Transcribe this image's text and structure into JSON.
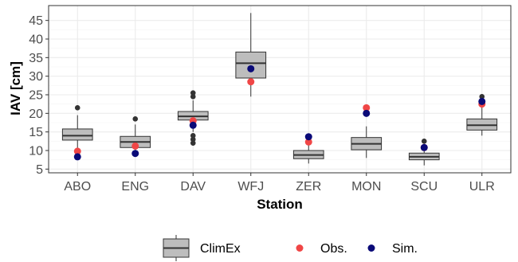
{
  "chart_data": {
    "type": "box",
    "categories": [
      "ABO",
      "ENG",
      "DAV",
      "WFJ",
      "ZER",
      "MON",
      "SCU",
      "ULR"
    ],
    "xlabel": "Station",
    "ylabel": "IAV [cm]",
    "ylim": [
      4,
      49
    ],
    "yticks": [
      5,
      10,
      15,
      20,
      25,
      30,
      35,
      40,
      45
    ],
    "grid": true,
    "legend_position": "bottom",
    "box_series": {
      "name": "ClimEx",
      "boxes": [
        {
          "whisker_low": 10.5,
          "q1": 12.8,
          "median": 14.0,
          "q3": 15.8,
          "whisker_high": 19.5,
          "outliers": [
            21.5
          ]
        },
        {
          "whisker_low": 8.5,
          "q1": 10.8,
          "median": 12.3,
          "q3": 13.8,
          "whisker_high": 17.0,
          "outliers": [
            18.5
          ]
        },
        {
          "whisker_low": 15.0,
          "q1": 18.2,
          "median": 19.2,
          "q3": 20.5,
          "whisker_high": 23.5,
          "outliers": [
            12.0,
            13.0,
            14.0,
            24.5,
            25.5
          ]
        },
        {
          "whisker_low": 24.5,
          "q1": 29.5,
          "median": 33.5,
          "q3": 36.5,
          "whisker_high": 47.0,
          "outliers": []
        },
        {
          "whisker_low": 6.5,
          "q1": 7.8,
          "median": 8.8,
          "q3": 10.0,
          "whisker_high": 13.0,
          "outliers": []
        },
        {
          "whisker_low": 8.0,
          "q1": 10.2,
          "median": 11.8,
          "q3": 13.5,
          "whisker_high": 16.5,
          "outliers": []
        },
        {
          "whisker_low": 6.0,
          "q1": 7.5,
          "median": 8.3,
          "q3": 9.3,
          "whisker_high": 11.5,
          "outliers": [
            12.5
          ]
        },
        {
          "whisker_low": 14.0,
          "q1": 15.5,
          "median": 16.8,
          "q3": 18.5,
          "whisker_high": 22.0,
          "outliers": [
            24.5
          ]
        }
      ]
    },
    "series": [
      {
        "name": "Obs.",
        "values": [
          9.8,
          11.2,
          18.0,
          28.5,
          12.3,
          21.5,
          10.8,
          22.5
        ]
      },
      {
        "name": "Sim.",
        "values": [
          8.3,
          9.2,
          16.8,
          32.0,
          13.7,
          20.0,
          10.8,
          23.2
        ]
      }
    ],
    "legend": [
      "ClimEx",
      "Obs.",
      "Sim."
    ]
  },
  "colors": {
    "panel_border": "#333333",
    "grid_major": "#ebebeb",
    "grid_minor": "#f4f4f4",
    "box_fill": "#bdbdbd",
    "box_stroke": "#333333",
    "outlier": "#333333",
    "obs": "#f04646",
    "sim": "#0a0a78"
  }
}
